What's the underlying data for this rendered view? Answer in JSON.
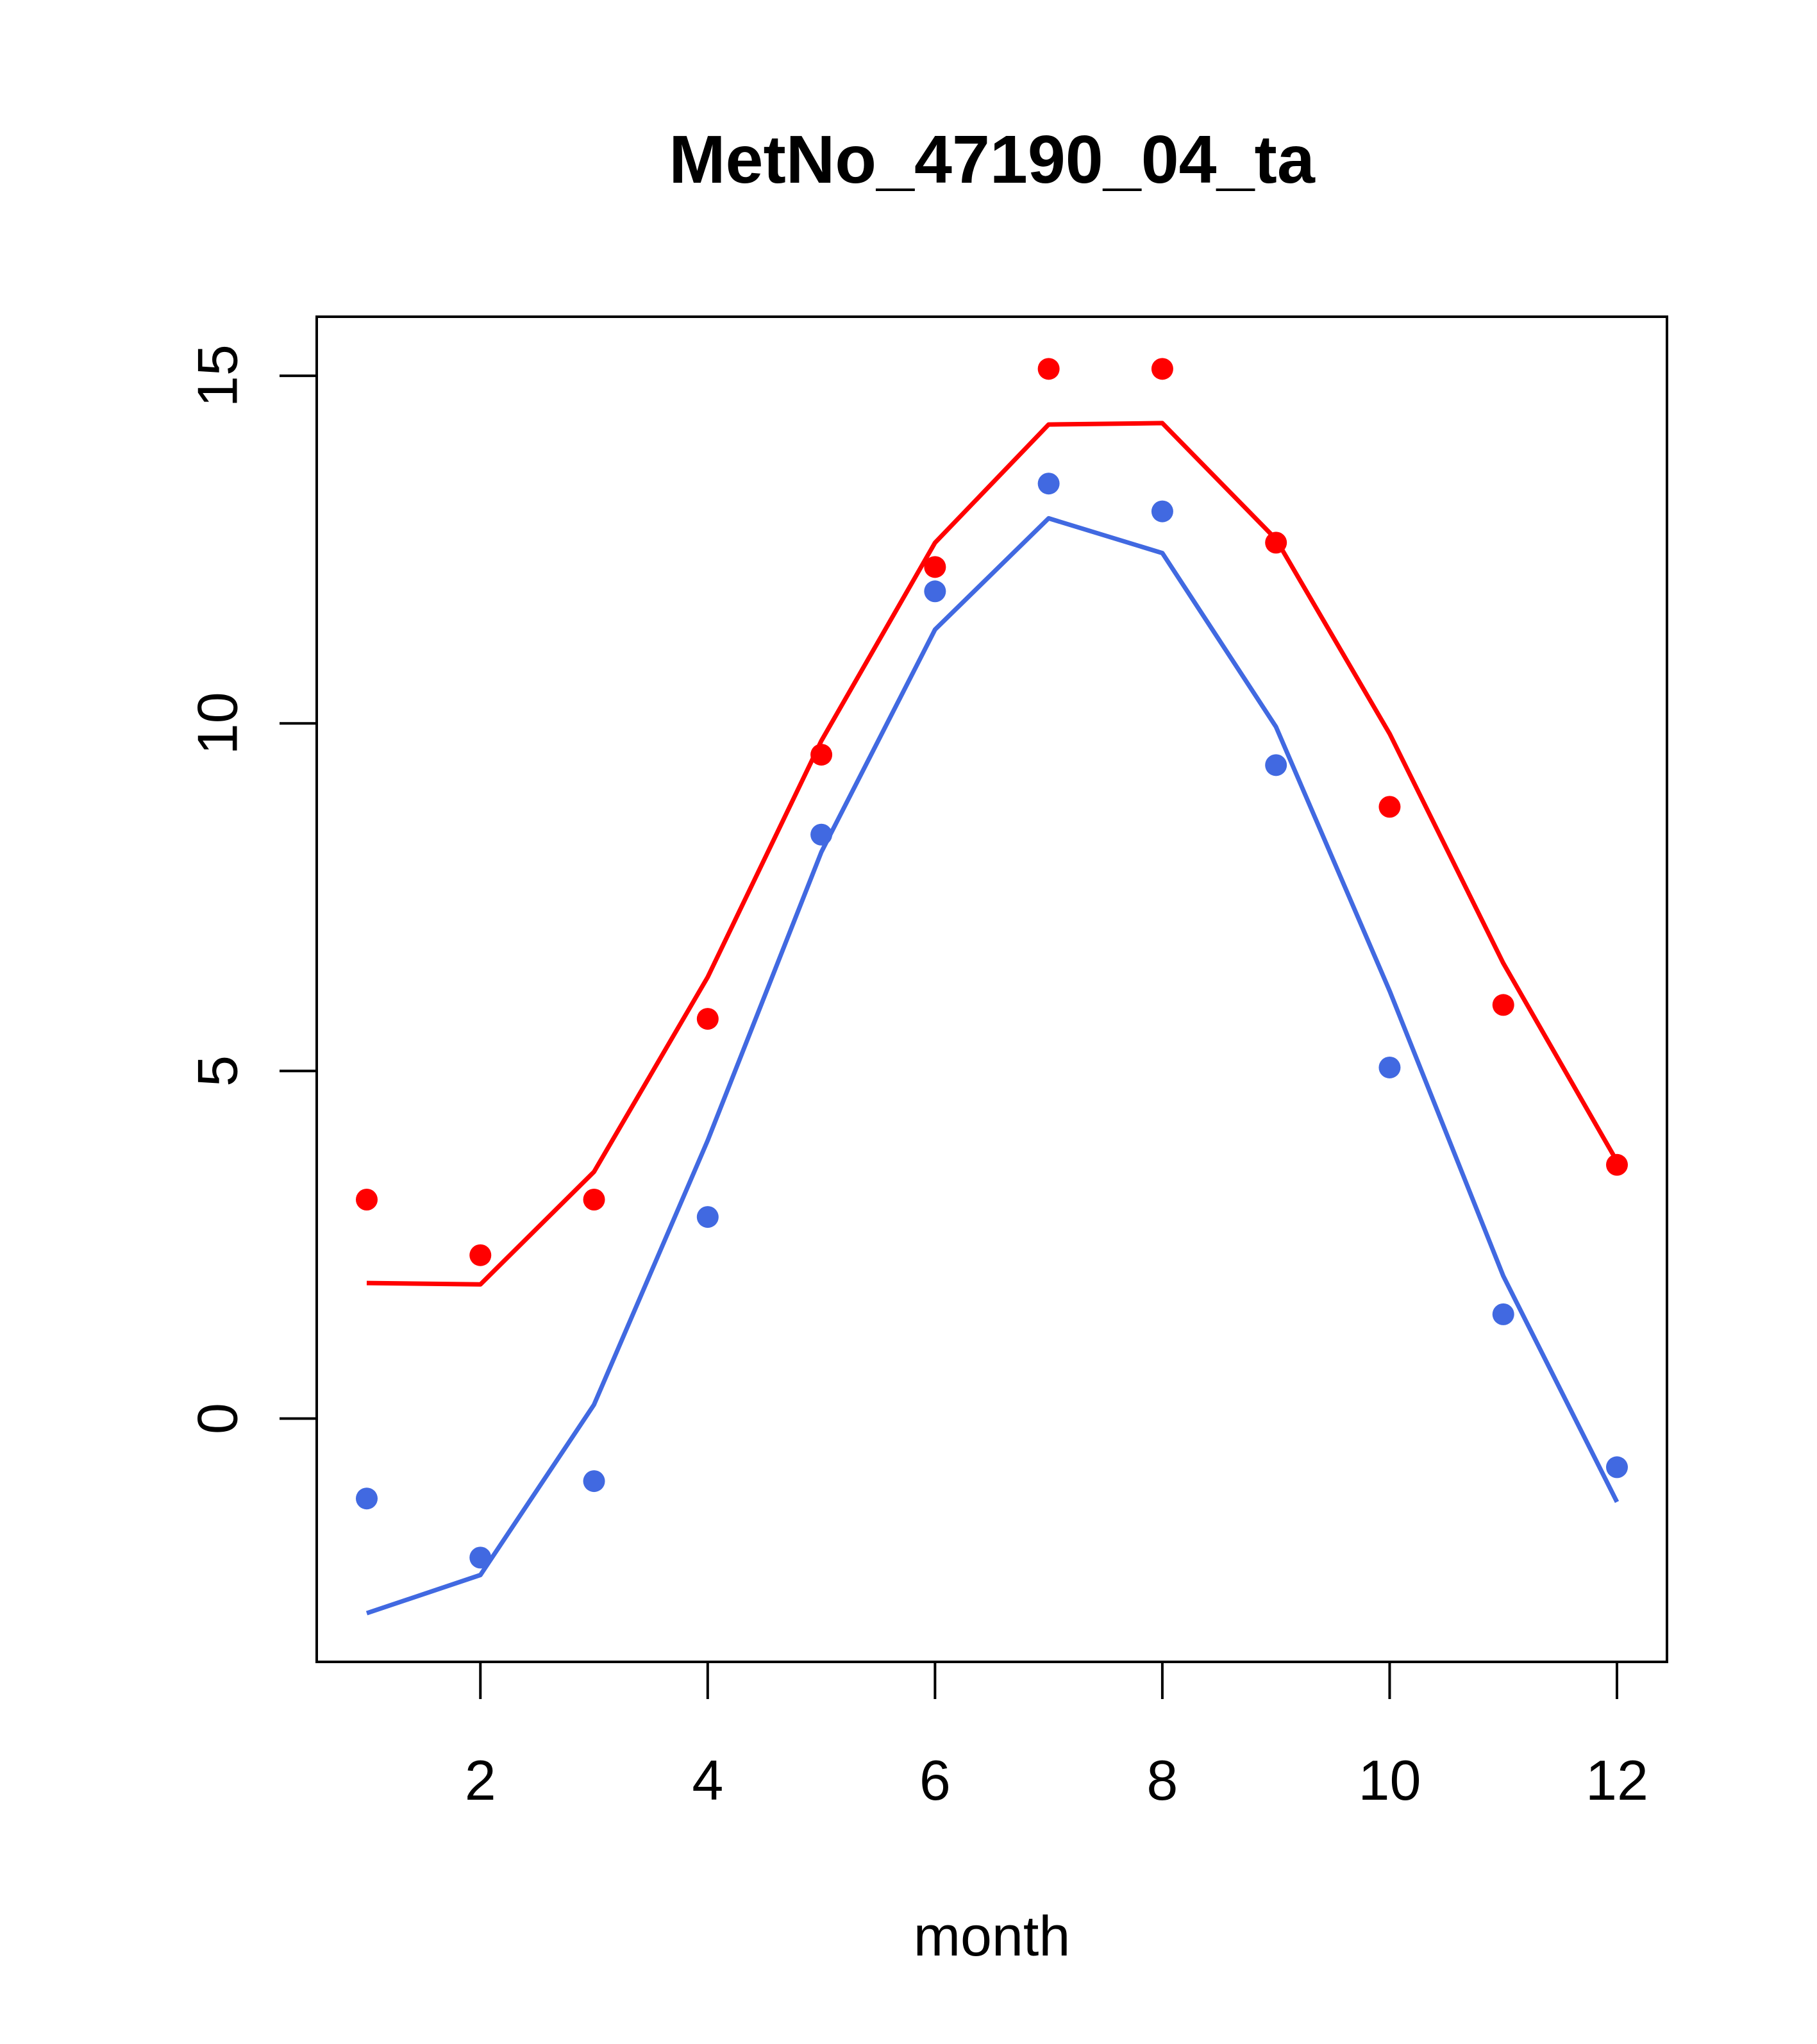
{
  "chart_data": {
    "type": "line",
    "title": "MetNo_47190_04_ta",
    "xlabel": "month",
    "ylabel": "",
    "xlim": [
      0.56,
      12.44
    ],
    "ylim": [
      -3.5,
      15.85
    ],
    "x_ticks": [
      2,
      4,
      6,
      8,
      10,
      12
    ],
    "y_ticks": [
      0,
      5,
      10,
      15
    ],
    "x": [
      1,
      2,
      3,
      4,
      5,
      6,
      7,
      8,
      9,
      10,
      11,
      12
    ],
    "grid": false,
    "legend": "none",
    "series": [
      {
        "color": "#ff0000",
        "points": [
          3.15,
          2.35,
          3.15,
          5.75,
          9.55,
          12.25,
          15.1,
          15.1,
          12.6,
          8.8,
          5.95,
          3.65
        ],
        "line": [
          1.95,
          1.93,
          3.55,
          6.35,
          9.75,
          12.6,
          14.3,
          14.32,
          12.65,
          9.85,
          6.55,
          3.7
        ]
      },
      {
        "color": "#4169e1",
        "points": [
          -1.15,
          -2.0,
          -0.9,
          2.9,
          8.4,
          11.9,
          13.45,
          13.05,
          9.4,
          5.05,
          1.5,
          -0.7
        ],
        "line": [
          -2.8,
          -2.25,
          0.2,
          4.0,
          8.15,
          11.35,
          12.95,
          12.45,
          9.95,
          6.15,
          2.05,
          -1.2
        ]
      }
    ]
  }
}
